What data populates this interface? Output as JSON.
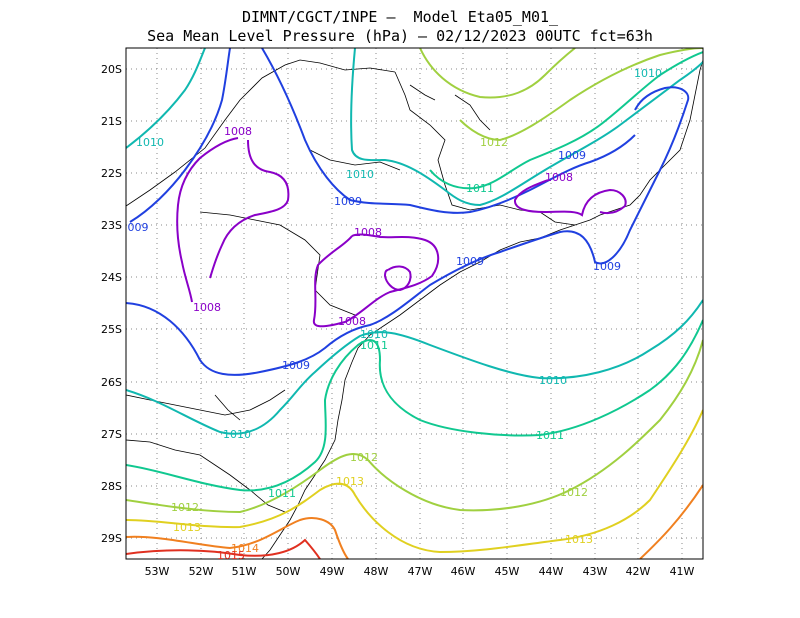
{
  "title_line1": "DIMNT/CGCT/INPE –  Model Eta05_M01_",
  "title_line2": "Sea Mean Level Pressure (hPa) – 02/12/2023 00UTC fct=63h",
  "lat_labels": [
    "20S",
    "21S",
    "22S",
    "23S",
    "24S",
    "25S",
    "26S",
    "27S",
    "28S",
    "29S"
  ],
  "lon_labels": [
    "53W",
    "52W",
    "51W",
    "50W",
    "49W",
    "48W",
    "47W",
    "46W",
    "45W",
    "44W",
    "43W",
    "42W",
    "41W"
  ],
  "colors": {
    "1008": "#8a00c8",
    "1009": "#2040e0",
    "1010": "#10b8b0",
    "1011": "#10c890",
    "1012": "#a0d040",
    "1013": "#e0d020",
    "1014": "#f08020",
    "1015": "#e03020"
  },
  "contour_labels": [
    {
      "text": "1010",
      "level": "1010"
    },
    {
      "text": "1010",
      "level": "1010"
    },
    {
      "text": "1010",
      "level": "1010"
    },
    {
      "text": "1010",
      "level": "1010"
    },
    {
      "text": "1010",
      "level": "1010"
    },
    {
      "text": "1010",
      "level": "1010"
    },
    {
      "text": "1008",
      "level": "1008"
    },
    {
      "text": "1008",
      "level": "1008"
    },
    {
      "text": "1008",
      "level": "1008"
    },
    {
      "text": "1008",
      "level": "1008"
    },
    {
      "text": "1008",
      "level": "1008"
    },
    {
      "text": "1009",
      "level": "1009"
    },
    {
      "text": "1009",
      "level": "1009"
    },
    {
      "text": "1009",
      "level": "1009"
    },
    {
      "text": "1009",
      "level": "1009"
    },
    {
      "text": "1009",
      "level": "1009"
    },
    {
      "text": "009",
      "level": "1009"
    },
    {
      "text": "1011",
      "level": "1011"
    },
    {
      "text": "1011",
      "level": "1011"
    },
    {
      "text": "1011",
      "level": "1011"
    },
    {
      "text": "1011",
      "level": "1011"
    },
    {
      "text": "1012",
      "level": "1012"
    },
    {
      "text": "1012",
      "level": "1012"
    },
    {
      "text": "1012",
      "level": "1012"
    },
    {
      "text": "1012",
      "level": "1012"
    },
    {
      "text": "1013",
      "level": "1013"
    },
    {
      "text": "1013",
      "level": "1013"
    },
    {
      "text": "1013",
      "level": "1013"
    },
    {
      "text": "1014",
      "level": "1014"
    },
    {
      "text": "1015",
      "level": "1015"
    }
  ]
}
